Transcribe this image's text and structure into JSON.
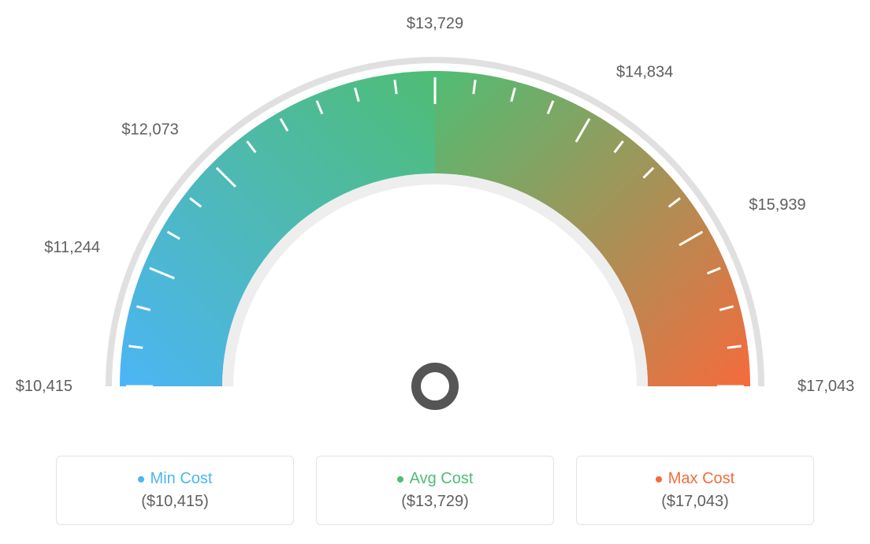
{
  "gauge": {
    "type": "gauge",
    "min_value": 10415,
    "avg_value": 13729,
    "max_value": 17043,
    "needle_value": 13729,
    "tick_labels": [
      "$10,415",
      "$11,244",
      "$12,073",
      "$13,729",
      "$14,834",
      "$15,939",
      "$17,043"
    ],
    "tick_angles_deg": [
      -90,
      -67.5,
      -45,
      0,
      30,
      60,
      90
    ],
    "minor_tick_step_deg": 7.5,
    "label_fontsize": 20,
    "label_color": "#5f5f5f",
    "outer_radius": 400,
    "arc_thickness": 130,
    "colors": {
      "low": "#4cb5f5",
      "mid": "#4fbd74",
      "high": "#f56b3d",
      "arc_border": "#e3e3e3",
      "outer_ring": "#e0e0e0",
      "tick_stroke": "#ffffff",
      "needle": "#555555",
      "background": "#ffffff"
    }
  },
  "legend": {
    "items": [
      {
        "label": "Min Cost",
        "value": "($10,415)",
        "color": "#4cb5f5"
      },
      {
        "label": "Avg Cost",
        "value": "($13,729)",
        "color": "#4fbd74"
      },
      {
        "label": "Max Cost",
        "value": "($17,043)",
        "color": "#f56b3d"
      }
    ],
    "card_border_color": "#e3e3e3",
    "label_fontsize": 20,
    "value_fontsize": 20,
    "value_color": "#5f5f5f"
  }
}
